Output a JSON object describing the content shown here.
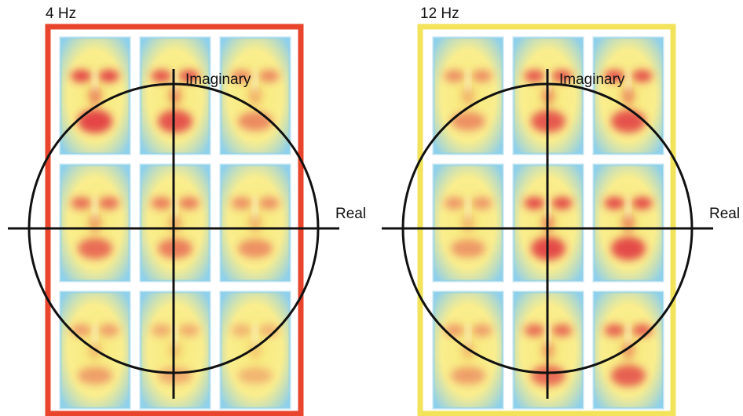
{
  "panels": [
    {
      "title": "4 Hz",
      "frame_color": "#e8452c",
      "axis_labels": {
        "imaginary": "Imaginary",
        "real": "Real"
      },
      "heat_rows": [
        [
          0.85,
          0.75,
          0.35
        ],
        [
          0.55,
          0.45,
          0.3
        ],
        [
          0.2,
          0.1,
          0.05
        ]
      ]
    },
    {
      "title": "12 Hz",
      "frame_color": "#f2e35a",
      "axis_labels": {
        "imaginary": "Imaginary",
        "real": "Real"
      },
      "heat_rows": [
        [
          0.3,
          0.7,
          0.75
        ],
        [
          0.25,
          0.8,
          0.8
        ],
        [
          0.2,
          0.55,
          0.65
        ]
      ]
    }
  ],
  "colors": {
    "cool": "#8fd0ea",
    "warm": "#f8ea7a",
    "hot": "#e0283a",
    "line": "#111111"
  },
  "tile_icon": "face-heatmap-icon"
}
